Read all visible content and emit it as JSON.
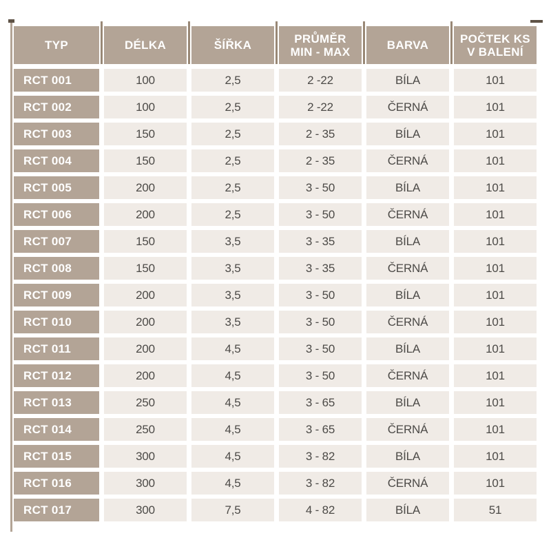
{
  "colors": {
    "header_bg": "#b3a496",
    "label_bg": "#b3a496",
    "cell_bg": "#f0ebe6",
    "header_text": "#ffffff",
    "cell_text": "#4c4a47",
    "separator_line": "#998876",
    "page_bg": "#ffffff"
  },
  "table": {
    "headers": [
      {
        "line1": "TYP",
        "line2": ""
      },
      {
        "line1": "DÉLKA",
        "line2": ""
      },
      {
        "line1": "ŠÍŘKA",
        "line2": ""
      },
      {
        "line1": "PRŮMĚR",
        "line2": "MIN - MAX"
      },
      {
        "line1": "BARVA",
        "line2": ""
      },
      {
        "line1": "POČTEK KS",
        "line2": "V BALENÍ"
      }
    ],
    "rows": [
      [
        "RCT 001",
        "100",
        "2,5",
        "2 -22",
        "BÍLA",
        "101"
      ],
      [
        "RCT 002",
        "100",
        "2,5",
        "2 -22",
        "ČERNÁ",
        "101"
      ],
      [
        "RCT 003",
        "150",
        "2,5",
        "2 - 35",
        "BÍLA",
        "101"
      ],
      [
        "RCT 004",
        "150",
        "2,5",
        "2 - 35",
        "ČERNÁ",
        "101"
      ],
      [
        "RCT 005",
        "200",
        "2,5",
        "3 - 50",
        "BÍLA",
        "101"
      ],
      [
        "RCT 006",
        "200",
        "2,5",
        "3 - 50",
        "ČERNÁ",
        "101"
      ],
      [
        "RCT 007",
        "150",
        "3,5",
        "3 - 35",
        "BÍLA",
        "101"
      ],
      [
        "RCT 008",
        "150",
        "3,5",
        "3 - 35",
        "ČERNÁ",
        "101"
      ],
      [
        "RCT 009",
        "200",
        "3,5",
        "3 - 50",
        "BÍLA",
        "101"
      ],
      [
        "RCT 010",
        "200",
        "3,5",
        "3 - 50",
        "ČERNÁ",
        "101"
      ],
      [
        "RCT 011",
        "200",
        "4,5",
        "3 - 50",
        "BÍLA",
        "101"
      ],
      [
        "RCT 012",
        "200",
        "4,5",
        "3 - 50",
        "ČERNÁ",
        "101"
      ],
      [
        "RCT 013",
        "250",
        "4,5",
        "3 - 65",
        "BÍLA",
        "101"
      ],
      [
        "RCT 014",
        "250",
        "4,5",
        "3 - 65",
        "ČERNÁ",
        "101"
      ],
      [
        "RCT 015",
        "300",
        "4,5",
        "3 - 82",
        "BÍLA",
        "101"
      ],
      [
        "RCT 016",
        "300",
        "4,5",
        "3 - 82",
        "ČERNÁ",
        "101"
      ],
      [
        "RCT 017",
        "300",
        "7,5",
        "4 - 82",
        "BÍLA",
        "51"
      ]
    ]
  }
}
